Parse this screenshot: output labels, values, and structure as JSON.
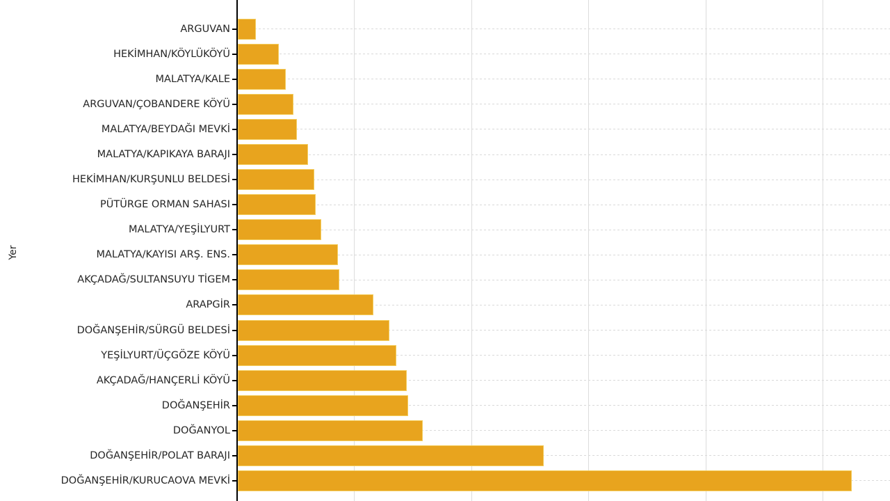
{
  "chart_data": {
    "type": "bar",
    "orientation": "horizontal",
    "title": "",
    "xlabel": "",
    "ylabel": "Yer",
    "categories": [
      "ARGUVAN",
      "HEKİMHAN/KÖYLÜKÖYÜ",
      "MALATYA/KALE",
      "ARGUVAN/ÇOBANDERE KÖYÜ",
      "MALATYA/BEYDAĞI MEVKİ",
      "MALATYA/KAPIKAYA BARAJI",
      "HEKİMHAN/KURŞUNLU BELDESİ",
      "PÜTÜRGE ORMAN SAHASI",
      "MALATYA/YEŞİLYURT",
      "MALATYA/KAYISI ARŞ. ENS.",
      "AKÇADAĞ/SULTANSUYU TİGEM",
      "ARAPGİR",
      "DOĞANŞEHİR/SÜRGÜ BELDESİ",
      "YEŞİLYURT/ÜÇGÖZE KÖYÜ",
      "AKÇADAĞ/HANÇERLİ KÖYÜ",
      "DOĞANŞEHİR",
      "DOĞANYOL",
      "DOĞANŞEHİR/POLAT BARAJI",
      "DOĞANŞEHİR/KURUCAOVA MEVKİ"
    ],
    "values": [
      0.155,
      0.35,
      0.41,
      0.475,
      0.505,
      0.6,
      0.655,
      0.665,
      0.715,
      0.855,
      0.865,
      1.16,
      1.295,
      1.355,
      1.445,
      1.455,
      1.58,
      2.615,
      5.245
    ],
    "value_units": "unlabeled axis units; 1.0 equals one vertical gridline interval (x tick labels are cut off below the visible screenshot)",
    "xlim": [
      0,
      5.57
    ],
    "grid": true,
    "x_gridline_values": [
      1,
      2,
      3,
      4,
      5
    ],
    "bar_color": "#e8a41e",
    "bar_edge_color": "#f3cd5e",
    "gridline_color": "#dcdcdc",
    "text_color": "#262626",
    "background": "#ffffff",
    "notes": "Chart cropped: no title, no x-axis tick labels, right/top edges cut off; bars sorted ascending top to bottom"
  }
}
